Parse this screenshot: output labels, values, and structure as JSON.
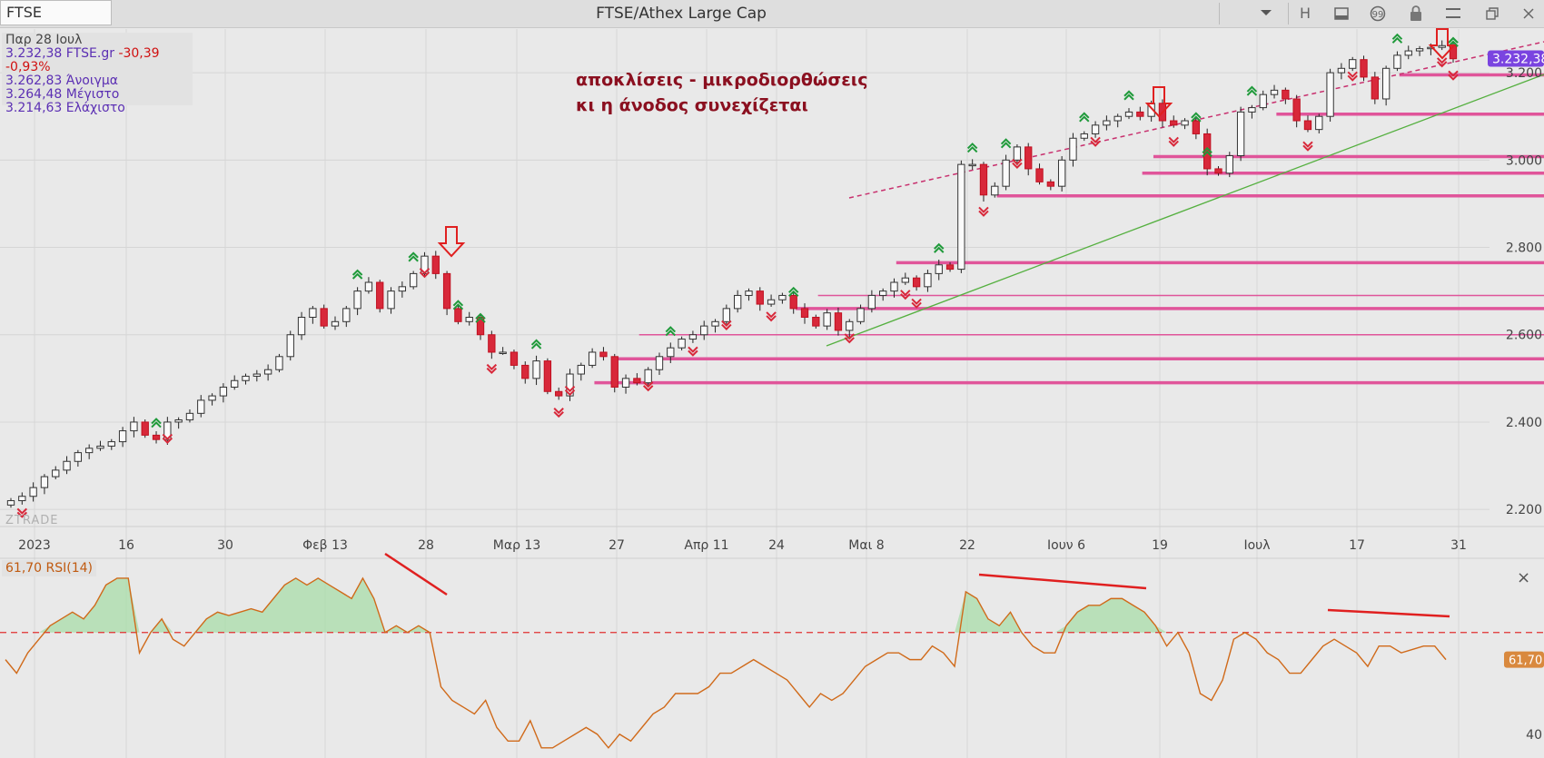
{
  "toolbar": {
    "symbol": "FTSE",
    "title": "FTSE/Athex Large Cap",
    "buttons": [
      "H"
    ]
  },
  "info": {
    "date": "Παρ 28 Ιουλ",
    "close_line": "3.232,38 FTSE.gr",
    "change": "-30,39 -0,93%",
    "open": "3.262,83 Άνοιγμα",
    "high": "3.264,48 Μέγιστο",
    "low": "3.214,63 Ελάχιστο"
  },
  "annotation": {
    "line1": "αποκλίσεις - μικροδιορθώσεις",
    "line2": "κι η άνοδος συνεχίζεται"
  },
  "watermark": "ZTRADE",
  "rsi_pane": {
    "label": "61,70 RSI(14)",
    "value_badge": "61,70",
    "close_symbol": "×"
  },
  "chart_data": [
    {
      "type": "candlestick",
      "title": "FTSE/Athex Large Cap",
      "x_tick_labels": [
        "2023",
        "16",
        "30",
        "Φεβ 13",
        "28",
        "Μαρ 13",
        "27",
        "Απρ 11",
        "24",
        "Μαι 8",
        "22",
        "Ιουν 6",
        "19",
        "Ιουλ",
        "17",
        "31"
      ],
      "y_tick_labels": [
        "2.200",
        "2.400",
        "2.600",
        "2.800",
        "3.000",
        "3.200"
      ],
      "y_ticks": [
        2200,
        2400,
        2600,
        2800,
        3000,
        3200
      ],
      "ylim": [
        2165,
        3300
      ],
      "last_value_badge": "3.232,38",
      "last_value": 3232.38,
      "support_levels": [
        3195,
        3105,
        3008,
        2970,
        2918,
        2765,
        2690,
        2660,
        2600,
        2545,
        2490
      ],
      "close_series_approx": [
        2220,
        2230,
        2250,
        2275,
        2290,
        2310,
        2330,
        2340,
        2345,
        2355,
        2380,
        2400,
        2370,
        2360,
        2400,
        2405,
        2420,
        2450,
        2460,
        2480,
        2495,
        2505,
        2510,
        2520,
        2550,
        2600,
        2640,
        2660,
        2620,
        2630,
        2660,
        2700,
        2720,
        2660,
        2700,
        2710,
        2740,
        2780,
        2740,
        2660,
        2630,
        2640,
        2600,
        2560,
        2560,
        2530,
        2500,
        2540,
        2470,
        2460,
        2510,
        2530,
        2560,
        2550,
        2480,
        2500,
        2490,
        2520,
        2550,
        2570,
        2590,
        2600,
        2620,
        2630,
        2660,
        2690,
        2700,
        2670,
        2680,
        2690,
        2660,
        2640,
        2620,
        2650,
        2610,
        2630,
        2660,
        2690,
        2700,
        2720,
        2730,
        2710,
        2740,
        2760,
        2750,
        2990,
        2990,
        2920,
        2940,
        3000,
        3030,
        2980,
        2950,
        2940,
        3000,
        3050,
        3060,
        3080,
        3090,
        3100,
        3110,
        3100,
        3130,
        3090,
        3080,
        3090,
        3060,
        2980,
        2970,
        3010,
        3110,
        3120,
        3150,
        3160,
        3140,
        3090,
        3070,
        3100,
        3200,
        3210,
        3230,
        3190,
        3140,
        3210,
        3240,
        3250,
        3255,
        3258,
        3262,
        3232
      ]
    },
    {
      "type": "line",
      "title": "RSI(14)",
      "series": [
        {
          "name": "RSI(14)",
          "values": [
            62,
            58,
            64,
            68,
            72,
            74,
            76,
            74,
            78,
            84,
            86,
            86,
            64,
            70,
            74,
            68,
            66,
            70,
            74,
            76,
            75,
            76,
            77,
            76,
            80,
            84,
            86,
            84,
            86,
            84,
            82,
            80,
            86,
            80,
            70,
            72,
            70,
            72,
            70,
            54,
            50,
            48,
            46,
            50,
            42,
            38,
            38,
            44,
            36,
            36,
            38,
            40,
            42,
            40,
            36,
            40,
            38,
            42,
            46,
            48,
            52,
            52,
            52,
            54,
            58,
            58,
            60,
            62,
            60,
            58,
            56,
            52,
            48,
            52,
            50,
            52,
            56,
            60,
            62,
            64,
            64,
            62,
            62,
            66,
            64,
            60,
            82,
            80,
            74,
            72,
            76,
            70,
            66,
            64,
            64,
            72,
            76,
            78,
            78,
            80,
            80,
            78,
            76,
            72,
            66,
            70,
            64,
            52,
            50,
            56,
            68,
            70,
            68,
            64,
            62,
            58,
            58,
            62,
            66,
            68,
            66,
            64,
            60,
            66,
            66,
            64,
            65,
            66,
            66,
            62
          ]
        }
      ],
      "reference_line": 70,
      "y_tick_labels": [
        "40"
      ],
      "ylim": [
        33,
        90
      ]
    }
  ]
}
